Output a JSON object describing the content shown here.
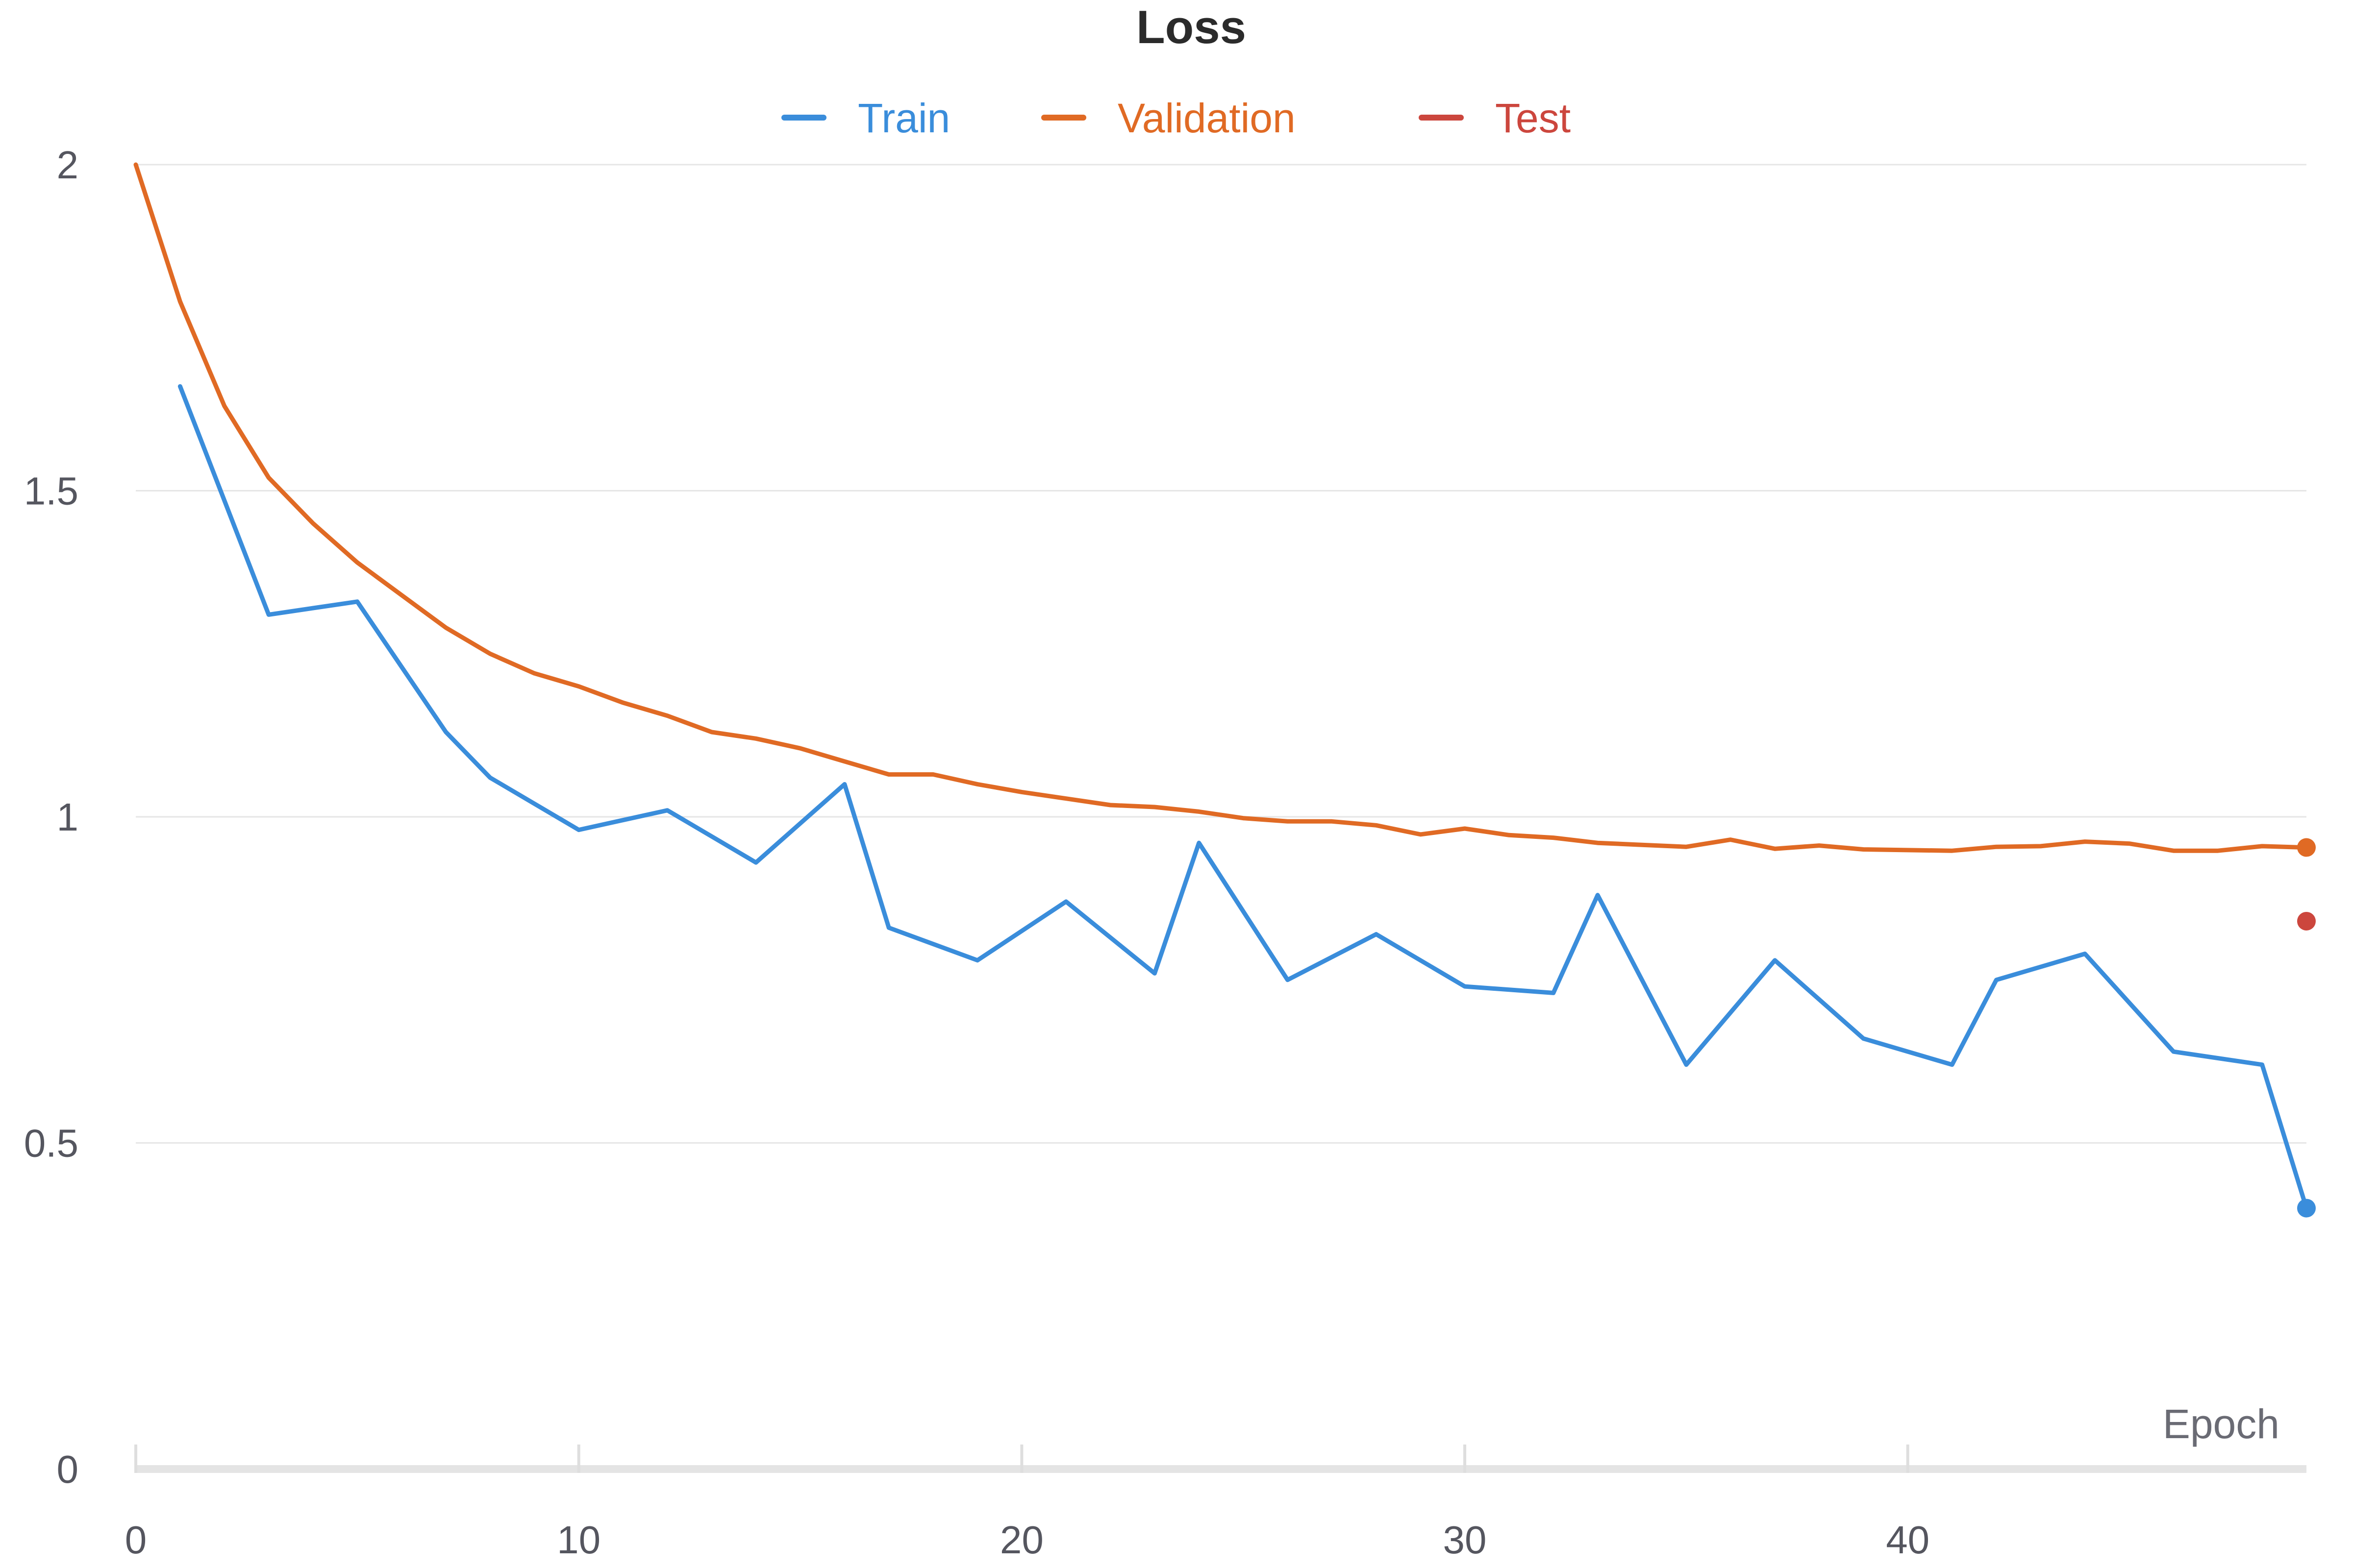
{
  "chart_data": {
    "type": "line",
    "title": "Loss",
    "xlabel": "Epoch",
    "ylabel": "",
    "xlim": [
      0,
      49
    ],
    "ylim": [
      0,
      2
    ],
    "x_ticks": [
      "0",
      "10",
      "20",
      "30",
      "40"
    ],
    "y_ticks": [
      "0",
      "0.5",
      "1",
      "1.5",
      "2"
    ],
    "grid": "horizontal",
    "legend_position": "top-center",
    "series": [
      {
        "name": "Train",
        "color": "#3a8ddb",
        "x": [
          1,
          3,
          5,
          7,
          8,
          10,
          12,
          14,
          16,
          17,
          19,
          21,
          23,
          24,
          26,
          28,
          30,
          32,
          33,
          35,
          37,
          39,
          41,
          42,
          44,
          46,
          48,
          49
        ],
        "values": [
          1.66,
          1.31,
          1.33,
          1.13,
          1.06,
          0.98,
          1.01,
          0.93,
          1.05,
          0.83,
          0.78,
          0.87,
          0.76,
          0.96,
          0.75,
          0.82,
          0.74,
          0.73,
          0.88,
          0.62,
          0.78,
          0.66,
          0.62,
          0.75,
          0.79,
          0.64,
          0.62,
          0.4
        ]
      },
      {
        "name": "Validation",
        "color": "#e06a24",
        "x": [
          0,
          1,
          2,
          3,
          4,
          5,
          6,
          7,
          8,
          9,
          10,
          11,
          12,
          13,
          14,
          15,
          16,
          17,
          18,
          19,
          20,
          21,
          22,
          23,
          24,
          25,
          26,
          27,
          28,
          29,
          30,
          31,
          32,
          33,
          34,
          35,
          36,
          37,
          38,
          39,
          40,
          41,
          42,
          43,
          44,
          45,
          46,
          47,
          48,
          49
        ],
        "values": [
          2.0,
          1.79,
          1.63,
          1.52,
          1.45,
          1.39,
          1.34,
          1.29,
          1.25,
          1.22,
          1.2,
          1.175,
          1.155,
          1.13,
          1.12,
          1.105,
          1.085,
          1.065,
          1.065,
          1.05,
          1.038,
          1.028,
          1.018,
          1.015,
          1.008,
          0.998,
          0.993,
          0.993,
          0.987,
          0.973,
          0.982,
          0.972,
          0.968,
          0.96,
          0.957,
          0.954,
          0.965,
          0.951,
          0.956,
          0.95,
          0.949,
          0.948,
          0.954,
          0.955,
          0.962,
          0.959,
          0.948,
          0.948,
          0.955,
          0.953
        ]
      },
      {
        "name": "Test",
        "color": "#cc463d",
        "x": [
          49
        ],
        "values": [
          0.84
        ]
      }
    ]
  }
}
